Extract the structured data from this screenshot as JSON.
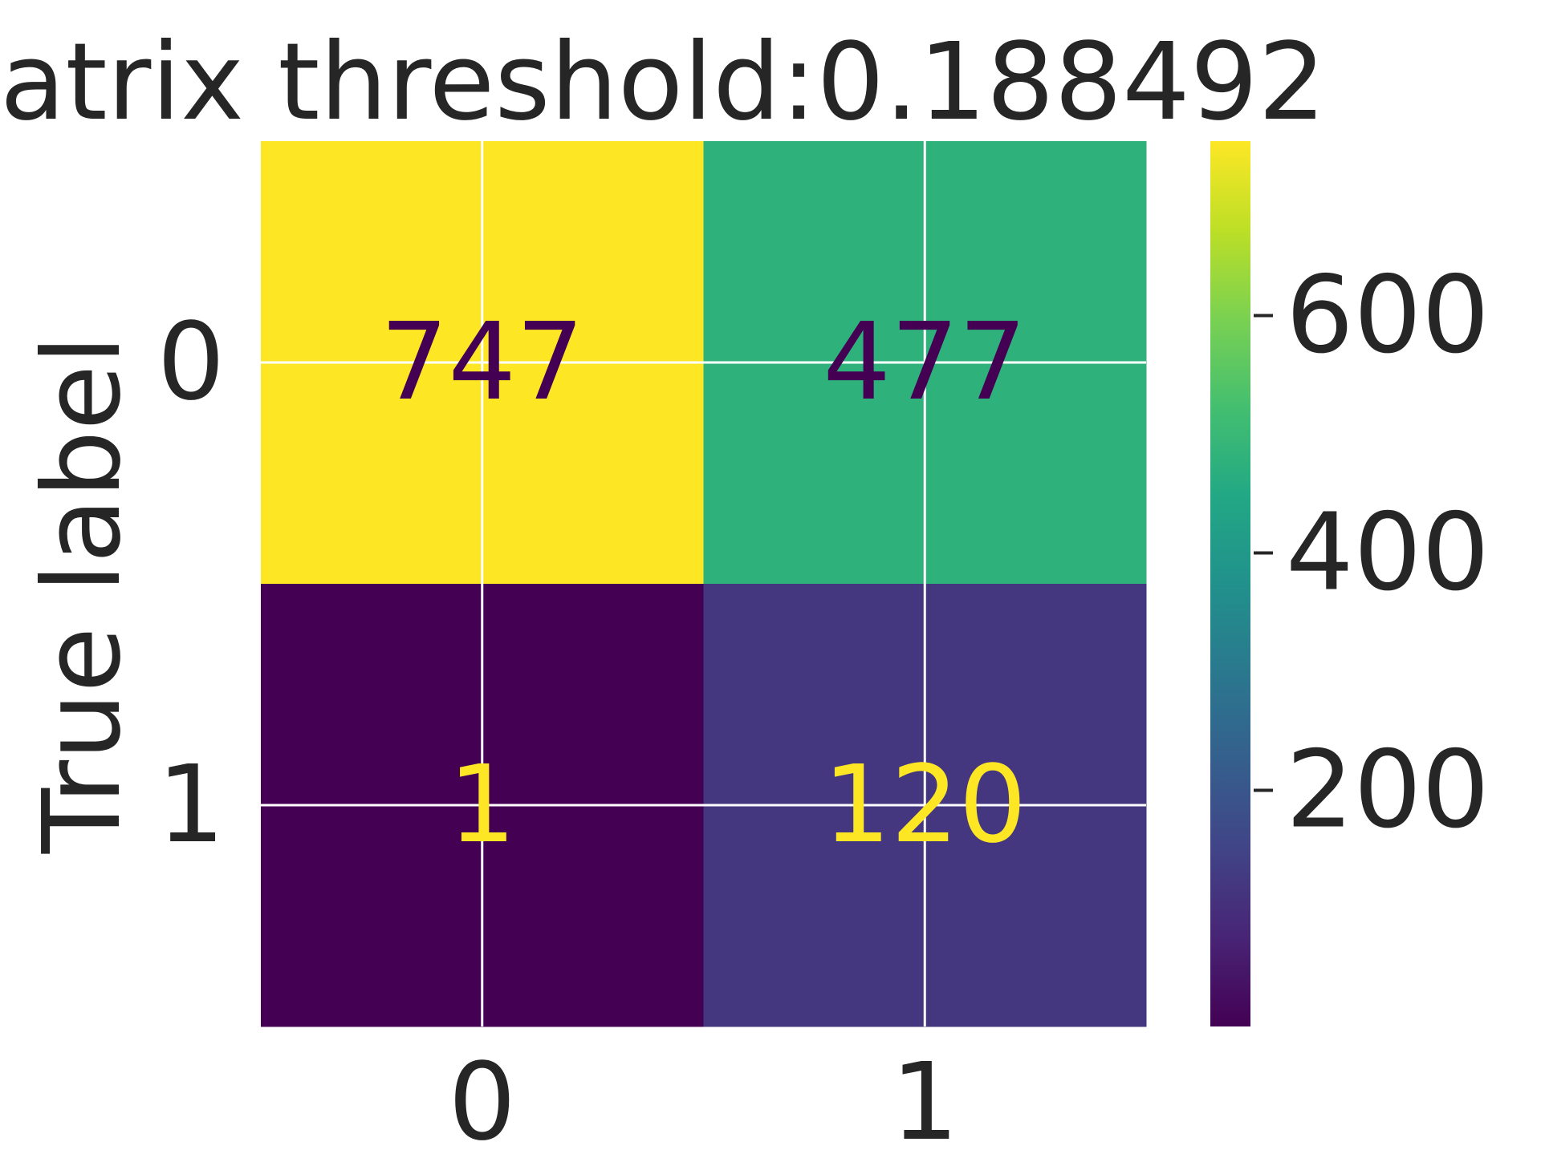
{
  "chart_data": {
    "type": "heatmap",
    "title": "atrix threshold:0.188492",
    "xlabel": "",
    "ylabel": "True label",
    "x_categories": [
      "0",
      "1"
    ],
    "y_categories": [
      "0",
      "1"
    ],
    "values": [
      [
        747,
        477
      ],
      [
        1,
        120
      ]
    ],
    "colormap": "viridis",
    "colorbar": {
      "ticks": [
        200,
        400,
        600
      ],
      "tick_labels": [
        "200",
        "400",
        "600"
      ],
      "range": [
        1,
        747
      ]
    },
    "grid": true
  },
  "colors": {
    "text": "#262626",
    "grid": "#ffffff",
    "viridis_low": "#440154",
    "viridis_high": "#fde725"
  }
}
